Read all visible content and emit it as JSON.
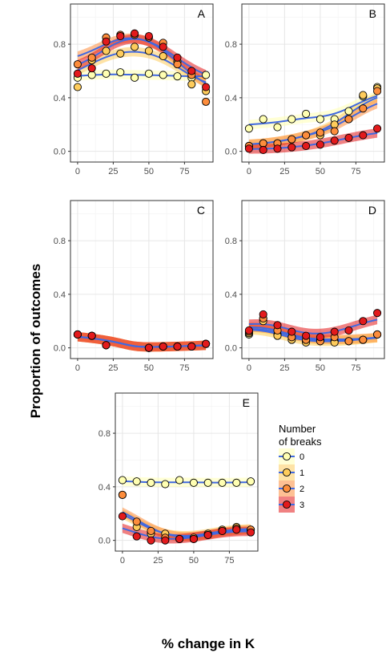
{
  "chart_data": {
    "type": "scatter",
    "xlabel": "% change in K",
    "ylabel": "Proportion of outcomes",
    "xlim": [
      -5,
      95
    ],
    "ylim": [
      -0.08,
      1.1
    ],
    "xticks": [
      0,
      25,
      50,
      75
    ],
    "yticks": [
      0.0,
      0.4,
      0.8
    ],
    "ytick_labels": [
      "0.0",
      "0.4",
      "0.8"
    ],
    "grid": true,
    "legend": {
      "title_line1": "Number",
      "title_line2": "of breaks",
      "placement": "right of panel E",
      "labels": [
        "0",
        "1",
        "2",
        "3"
      ]
    },
    "colors": {
      "0": "#ffffb2",
      "1": "#fecc5c",
      "2": "#fd8d3c",
      "3": "#e31a1c"
    },
    "fit_color": "#4169e1",
    "x": [
      0,
      10,
      20,
      30,
      40,
      50,
      60,
      70,
      80,
      90
    ],
    "panels": [
      {
        "label": "A",
        "series": [
          {
            "name": "0",
            "values": [
              0.55,
              0.57,
              0.58,
              0.59,
              0.55,
              0.58,
              0.57,
              0.56,
              0.55,
              0.57
            ]
          },
          {
            "name": "1",
            "values": [
              0.48,
              0.68,
              0.75,
              0.73,
              0.78,
              0.75,
              0.71,
              0.67,
              0.5,
              0.45
            ]
          },
          {
            "name": "2",
            "values": [
              0.65,
              0.7,
              0.85,
              0.87,
              0.87,
              0.85,
              0.81,
              0.65,
              0.57,
              0.37
            ]
          },
          {
            "name": "3",
            "values": [
              0.58,
              0.62,
              0.82,
              0.86,
              0.88,
              0.86,
              0.78,
              0.7,
              0.6,
              0.48
            ]
          }
        ]
      },
      {
        "label": "B",
        "series": [
          {
            "name": "0",
            "values": [
              0.17,
              0.24,
              0.18,
              0.24,
              0.28,
              0.24,
              0.24,
              0.3,
              0.41,
              0.48
            ]
          },
          {
            "name": "1",
            "values": [
              0.04,
              0.06,
              0.06,
              0.09,
              0.12,
              0.12,
              0.2,
              0.24,
              0.42,
              0.47
            ]
          },
          {
            "name": "2",
            "values": [
              0.04,
              0.06,
              0.06,
              0.09,
              0.12,
              0.14,
              0.15,
              0.24,
              0.32,
              0.45
            ]
          },
          {
            "name": "3",
            "values": [
              0.02,
              0.01,
              0.02,
              0.03,
              0.04,
              0.05,
              0.08,
              0.1,
              0.12,
              0.17
            ]
          }
        ]
      },
      {
        "label": "C",
        "series": [
          {
            "name": "0",
            "values": [
              0.1,
              0.09,
              0.02,
              null,
              null,
              0.0,
              0.01,
              0.01,
              0.01,
              0.03
            ]
          },
          {
            "name": "1",
            "values": [
              0.1,
              0.09,
              0.02,
              null,
              null,
              0.0,
              0.01,
              0.01,
              0.01,
              0.03
            ]
          },
          {
            "name": "2",
            "values": [
              0.1,
              0.09,
              0.02,
              null,
              null,
              0.0,
              0.01,
              0.01,
              0.01,
              0.03
            ]
          },
          {
            "name": "3",
            "values": [
              0.1,
              0.09,
              0.02,
              null,
              null,
              0.0,
              0.01,
              0.01,
              0.01,
              0.03
            ]
          }
        ]
      },
      {
        "label": "D",
        "series": [
          {
            "name": "0",
            "values": [
              0.1,
              0.22,
              0.1,
              0.08,
              0.05,
              0.06,
              0.05,
              0.05,
              0.06,
              0.1
            ]
          },
          {
            "name": "1",
            "values": [
              0.11,
              0.2,
              0.09,
              0.06,
              0.04,
              0.05,
              0.04,
              0.05,
              0.06,
              0.1
            ]
          },
          {
            "name": "2",
            "values": [
              0.12,
              0.22,
              0.13,
              0.08,
              0.06,
              0.05,
              0.08,
              0.05,
              0.06,
              0.1
            ]
          },
          {
            "name": "3",
            "values": [
              0.13,
              0.25,
              0.17,
              0.12,
              0.09,
              0.08,
              0.12,
              0.13,
              0.2,
              0.26
            ]
          }
        ]
      },
      {
        "label": "E",
        "series": [
          {
            "name": "0",
            "values": [
              0.45,
              0.44,
              0.43,
              0.42,
              0.45,
              0.43,
              0.43,
              0.43,
              0.43,
              0.44
            ]
          },
          {
            "name": "1",
            "values": [
              0.34,
              0.1,
              0.05,
              0.05,
              0.01,
              0.02,
              0.05,
              0.08,
              0.1,
              0.08
            ]
          },
          {
            "name": "2",
            "values": [
              0.34,
              0.14,
              0.07,
              0.02,
              0.01,
              0.01,
              0.04,
              0.07,
              0.09,
              0.08
            ]
          },
          {
            "name": "3",
            "values": [
              0.18,
              0.03,
              0.0,
              0.0,
              0.01,
              0.01,
              0.04,
              0.07,
              0.08,
              0.06
            ]
          }
        ]
      }
    ]
  }
}
